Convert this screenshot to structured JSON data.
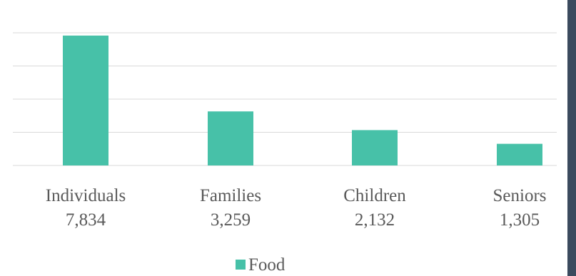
{
  "colors": {
    "bar": "#47c1a8",
    "grid": "#d9d9d9",
    "text": "#595959",
    "side_bar": "#3b4a5e"
  },
  "chart_data": {
    "type": "bar",
    "categories": [
      "Individuals",
      "Families",
      "Children",
      "Seniors"
    ],
    "value_labels": [
      "7,834",
      "3,259",
      "2,132",
      "1,305"
    ],
    "series": [
      {
        "name": "Food",
        "values": [
          7834,
          3259,
          2132,
          1305
        ]
      }
    ],
    "ylim": [
      0,
      10000
    ],
    "grid": true,
    "legend": "bottom",
    "title": "",
    "xlabel": "",
    "ylabel": ""
  }
}
